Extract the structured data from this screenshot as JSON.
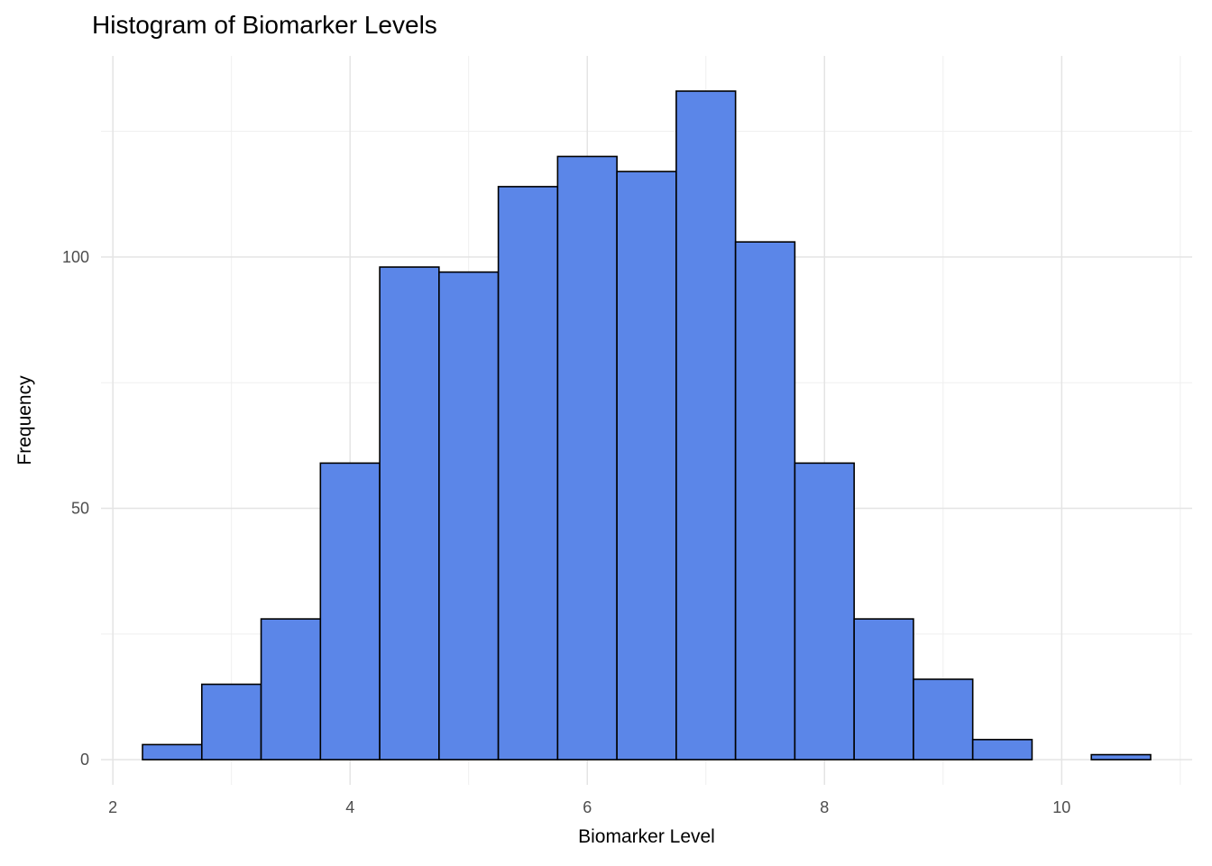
{
  "chart_data": {
    "type": "bar",
    "subtype": "histogram",
    "title": "Histogram of Biomarker Levels",
    "xlabel": "Biomarker Level",
    "ylabel": "Frequency",
    "bin_start": 2.25,
    "bin_width": 0.5,
    "bin_edges": [
      2.25,
      2.75,
      3.25,
      3.75,
      4.25,
      4.75,
      5.25,
      5.75,
      6.25,
      6.75,
      7.25,
      7.75,
      8.25,
      8.75,
      9.25,
      9.75,
      10.25,
      10.75
    ],
    "counts": [
      3,
      15,
      28,
      59,
      98,
      97,
      114,
      120,
      117,
      133,
      103,
      59,
      28,
      16,
      4,
      0,
      1
    ],
    "x_ticks": [
      2,
      4,
      6,
      8,
      10
    ],
    "y_ticks": [
      0,
      50,
      100
    ],
    "x_minor_ticks": [
      3,
      5,
      7,
      9,
      11
    ],
    "y_minor_ticks": [
      25,
      75,
      125
    ],
    "xlim": [
      1.9,
      11.1
    ],
    "ylim": [
      -5,
      140
    ],
    "grid": "on",
    "legend_position": "none",
    "colors": {
      "bar_fill": "#5B86E8",
      "bar_stroke": "#000000",
      "grid_major": "#E4E4E4",
      "grid_minor": "#EFEFEF",
      "tick_label": "#4D4D4D",
      "background": "#FFFFFF"
    }
  }
}
